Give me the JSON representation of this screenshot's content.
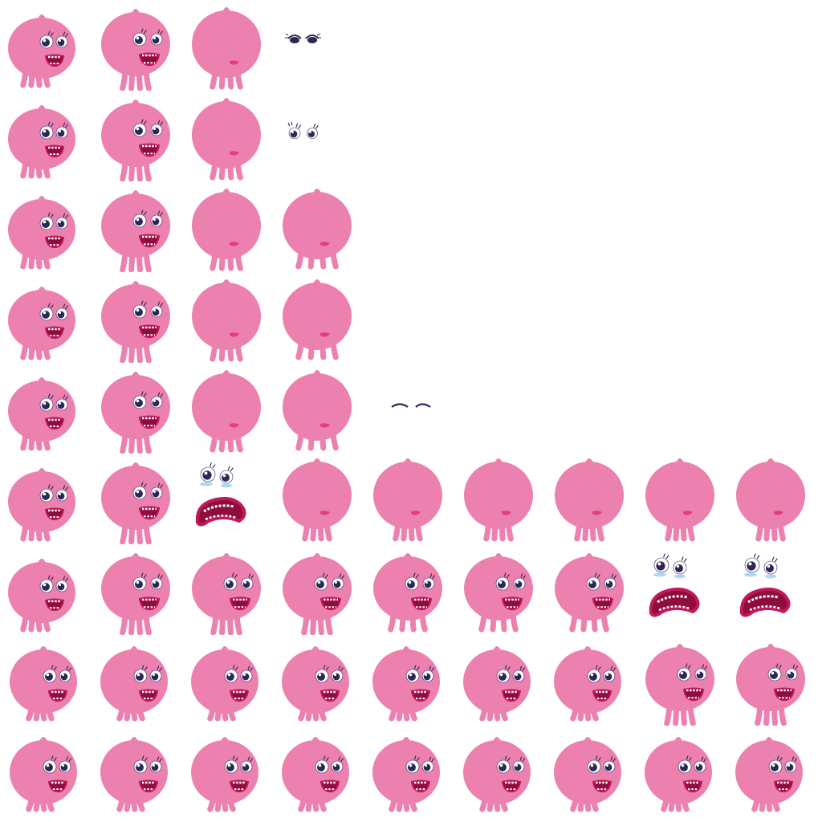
{
  "sprite_sheet": {
    "columns": 9,
    "rows": 9,
    "colors": {
      "body": "#ec80ae",
      "mouth": "#c2175b",
      "mouth_inner": "#8e0d3c",
      "tongue": "#e23d7f",
      "pupil": "#2d2759",
      "eyelash": "#2d2759",
      "tear": "#a9d9f4",
      "background": "#ffffff"
    },
    "rows_data": [
      [
        "happy-front",
        "happy-tilt",
        "back",
        "eyes-half",
        "",
        "",
        "",
        "",
        ""
      ],
      [
        "happy-front",
        "happy-tilt",
        "back",
        "eyes-open",
        "",
        "",
        "",
        "",
        ""
      ],
      [
        "happy-front",
        "happy-tilt",
        "back",
        "back-step",
        "",
        "",
        "",
        "",
        ""
      ],
      [
        "happy-front",
        "happy-tilt",
        "back",
        "back-step",
        "",
        "",
        "",
        "",
        ""
      ],
      [
        "happy-front",
        "happy-tilt",
        "back",
        "back-step",
        "eyes-closed",
        "",
        "",
        "",
        ""
      ],
      [
        "happy-front",
        "happy-tilt",
        "scared-face",
        "back-tall",
        "back-tall",
        "back-tall",
        "back-tall",
        "back-tall",
        "back-tall"
      ],
      [
        "happy-front",
        "happy-tilt",
        "happy-tilt",
        "happy-tilt",
        "happy-walk",
        "happy-walk",
        "happy-walk",
        "scared-face",
        "scared-face"
      ],
      [
        "round-front",
        "round-front",
        "round-front",
        "round-front",
        "round-front",
        "round-front",
        "round-front",
        "happy-tilt",
        "happy-tilt"
      ],
      [
        "round-front",
        "round-front",
        "round-front",
        "round-front",
        "round-front",
        "round-front",
        "round-front",
        "round-front",
        "round-front"
      ]
    ]
  }
}
